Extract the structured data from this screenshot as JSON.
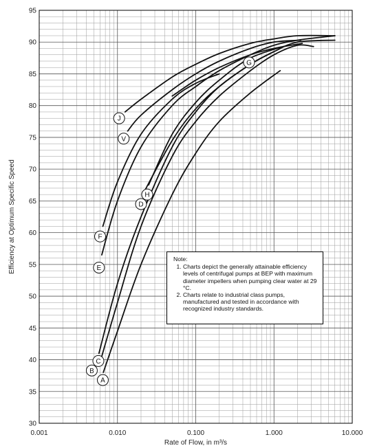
{
  "chart_data": {
    "type": "line",
    "title": "",
    "xlabel": "Rate of Flow, in m³/s",
    "ylabel": "Efficiency at Optimum  Specific Speed",
    "xscale": "log",
    "xlim": [
      0.001,
      10
    ],
    "ylim": [
      30,
      95
    ],
    "grid": true,
    "x_tick_labels": [
      "0.001",
      "0.010",
      "0.100",
      "1.000",
      "10.000"
    ],
    "y_tick_labels": [
      "30",
      "35",
      "40",
      "45",
      "50",
      "55",
      "60",
      "65",
      "70",
      "75",
      "80",
      "85",
      "90",
      "95"
    ],
    "series": [
      {
        "name": "A",
        "label_at": [
          0.0065,
          36.8
        ],
        "points": [
          [
            0.0066,
            38
          ],
          [
            0.01,
            44.5
          ],
          [
            0.02,
            55
          ],
          [
            0.05,
            66
          ],
          [
            0.1,
            72.5
          ],
          [
            0.2,
            77.5
          ],
          [
            0.5,
            82
          ],
          [
            1.2,
            85.5
          ]
        ]
      },
      {
        "name": "B",
        "label_at": [
          0.0047,
          38.3
        ],
        "points": [
          [
            0.0058,
            39
          ],
          [
            0.01,
            49
          ],
          [
            0.02,
            61
          ],
          [
            0.05,
            72
          ],
          [
            0.1,
            77.5
          ],
          [
            0.2,
            81.5
          ],
          [
            0.5,
            85.5
          ],
          [
            1,
            88
          ],
          [
            2,
            89.5
          ],
          [
            3.2,
            89.3
          ]
        ]
      },
      {
        "name": "C",
        "label_at": [
          0.0057,
          39.8
        ],
        "points": [
          [
            0.0058,
            41
          ],
          [
            0.01,
            52
          ],
          [
            0.02,
            62.5
          ],
          [
            0.05,
            73.5
          ],
          [
            0.1,
            79
          ],
          [
            0.2,
            83
          ],
          [
            0.5,
            86.5
          ],
          [
            1,
            88.5
          ],
          [
            2,
            90
          ],
          [
            6,
            90.3
          ]
        ]
      },
      {
        "name": "D",
        "label_at": [
          0.02,
          64.5
        ],
        "points": [
          [
            0.021,
            66
          ],
          [
            0.05,
            74.5
          ],
          [
            0.1,
            79.5
          ],
          [
            0.2,
            83
          ],
          [
            0.5,
            86.5
          ],
          [
            1,
            88.5
          ]
        ]
      },
      {
        "name": "H",
        "label_at": [
          0.024,
          66
        ],
        "points": [
          [
            0.025,
            67.5
          ],
          [
            0.05,
            75.5
          ],
          [
            0.1,
            80.5
          ],
          [
            0.2,
            84
          ],
          [
            0.5,
            87.5
          ],
          [
            1.5,
            89.5
          ]
        ]
      },
      {
        "name": "E",
        "label_at": [
          0.0058,
          54.5
        ],
        "points": [
          [
            0.0063,
            56.5
          ],
          [
            0.01,
            65
          ],
          [
            0.02,
            73.5
          ],
          [
            0.05,
            80
          ],
          [
            0.1,
            83
          ],
          [
            0.2,
            85.5
          ],
          [
            0.5,
            88
          ],
          [
            1,
            89.5
          ],
          [
            2,
            90.3
          ],
          [
            6,
            91
          ]
        ]
      },
      {
        "name": "F",
        "label_at": [
          0.006,
          59.4
        ],
        "points": [
          [
            0.0065,
            61
          ],
          [
            0.01,
            68
          ],
          [
            0.02,
            75.5
          ],
          [
            0.05,
            81
          ],
          [
            0.1,
            83.5
          ],
          [
            0.2,
            85
          ]
        ]
      },
      {
        "name": "G",
        "label_at": [
          0.48,
          86.8
        ],
        "points": [
          [
            0.05,
            81.5
          ],
          [
            0.1,
            84
          ],
          [
            0.2,
            86
          ],
          [
            0.5,
            88
          ],
          [
            1,
            89
          ],
          [
            2.3,
            89.8
          ]
        ]
      },
      {
        "name": "J",
        "label_at": [
          0.0105,
          78
        ],
        "points": [
          [
            0.0125,
            79
          ],
          [
            0.02,
            81
          ],
          [
            0.05,
            84.5
          ],
          [
            0.1,
            86.5
          ],
          [
            0.2,
            88.2
          ],
          [
            0.5,
            89.8
          ],
          [
            1,
            90.5
          ],
          [
            2,
            91
          ],
          [
            6,
            91
          ]
        ]
      },
      {
        "name": "V",
        "label_at": [
          0.012,
          74.8
        ],
        "points": [
          [
            0.0135,
            76
          ],
          [
            0.02,
            78.5
          ],
          [
            0.05,
            82.5
          ],
          [
            0.1,
            85
          ],
          [
            0.2,
            87
          ],
          [
            0.5,
            89
          ],
          [
            1,
            90
          ],
          [
            2.2,
            90.3
          ]
        ]
      }
    ],
    "note": {
      "title": "Note:",
      "items": [
        "Charts depict the generally attainable efficiency levels of centrifugal pumps at BEP with maximum diameter impellers when pumping clear water at 29 °C.",
        "Charts relate to industrial class pumps, manufactured and tested in accordance with recognized industry standards."
      ]
    }
  }
}
